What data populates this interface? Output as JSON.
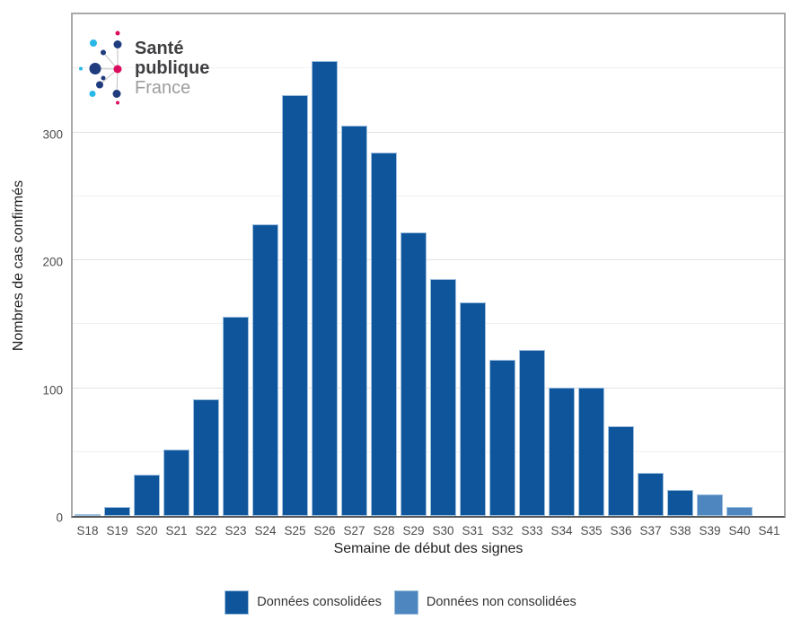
{
  "logo": {
    "line1": "Santé",
    "line2": "publique",
    "line3": "France",
    "colors": {
      "navy": "#1f3d7e",
      "cyan": "#29b7e8",
      "pink": "#dc0d5f",
      "text_dark": "#3f3f42",
      "text_gray": "#9d9d9c"
    }
  },
  "chart_data": {
    "type": "bar",
    "title": "",
    "xlabel": "Semaine de début des signes",
    "ylabel": "Nombres de cas confirmés",
    "categories": [
      "S18",
      "S19",
      "S20",
      "S21",
      "S22",
      "S23",
      "S24",
      "S25",
      "S26",
      "S27",
      "S28",
      "S29",
      "S30",
      "S31",
      "S32",
      "S33",
      "S34",
      "S35",
      "S36",
      "S37",
      "S38",
      "S39",
      "S40",
      "S41"
    ],
    "values": [
      1,
      7,
      32,
      52,
      91,
      156,
      228,
      329,
      356,
      305,
      284,
      222,
      185,
      167,
      122,
      130,
      100,
      100,
      70,
      34,
      20,
      17,
      7,
      0
    ],
    "consolidated": [
      true,
      true,
      true,
      true,
      true,
      true,
      true,
      true,
      true,
      true,
      true,
      true,
      true,
      true,
      true,
      true,
      true,
      true,
      true,
      true,
      true,
      false,
      false,
      true
    ],
    "ylim": [
      0,
      393
    ],
    "yticks": [
      0,
      100,
      200,
      300
    ],
    "minor_gridlines": [
      50,
      150,
      250,
      350
    ],
    "grid": "horizontal",
    "legend_position": "bottom",
    "legend": [
      {
        "label": "Données consolidées",
        "color": "#0f559c"
      },
      {
        "label": "Données non consolidées",
        "color": "#4e86c0"
      }
    ],
    "colors": {
      "consolidated": "#0f559c",
      "non_consolidated": "#4e86c0",
      "bar_border": "#9dbfde"
    }
  }
}
